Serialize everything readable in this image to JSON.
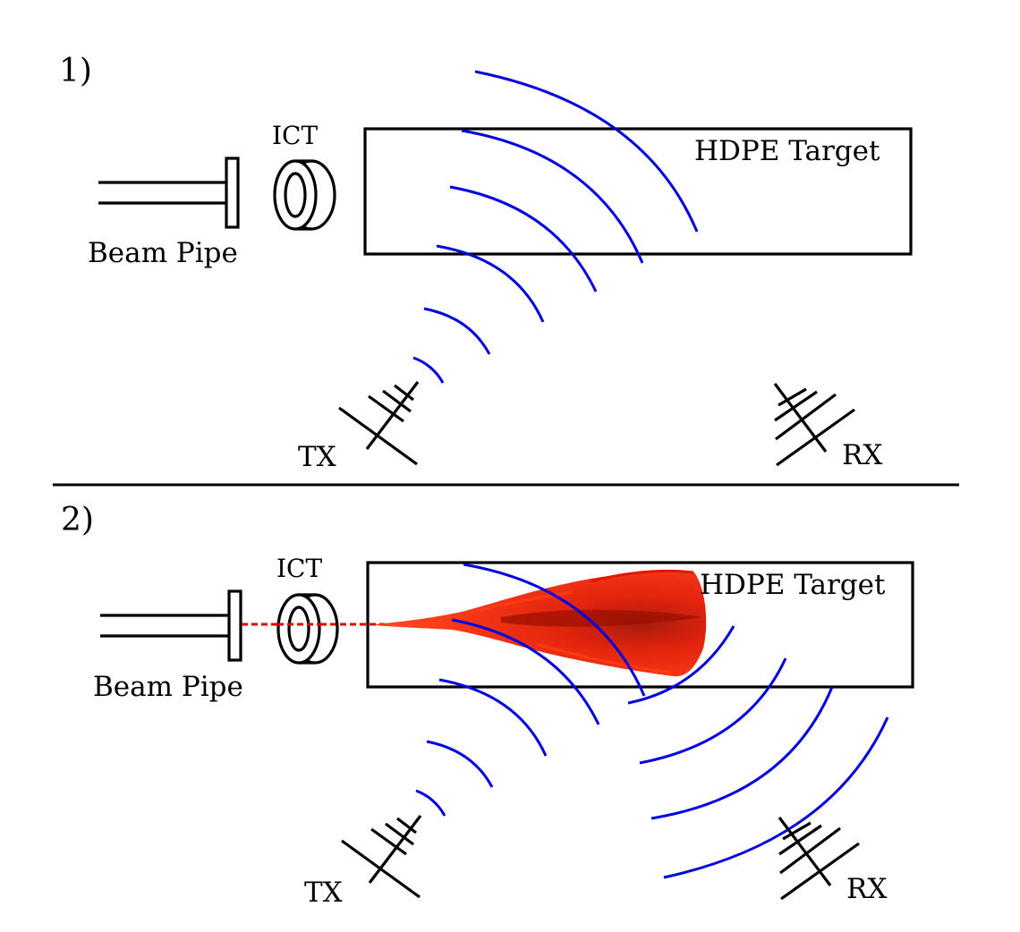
{
  "panel1": {
    "number": "1)",
    "ict_label": "ICT",
    "target_label": "HDPE Target",
    "pipe_label": "Beam Pipe",
    "tx_label": "TX",
    "rx_label": "RX"
  },
  "panel2": {
    "number": "2)",
    "ict_label": "ICT",
    "target_label": "HDPE Target",
    "pipe_label": "Beam Pipe",
    "tx_label": "TX",
    "rx_label": "RX"
  },
  "colors": {
    "waves": "#0000e0",
    "beam": "#e00000",
    "shower": "#ff2a00",
    "shower_core": "#b01000"
  }
}
